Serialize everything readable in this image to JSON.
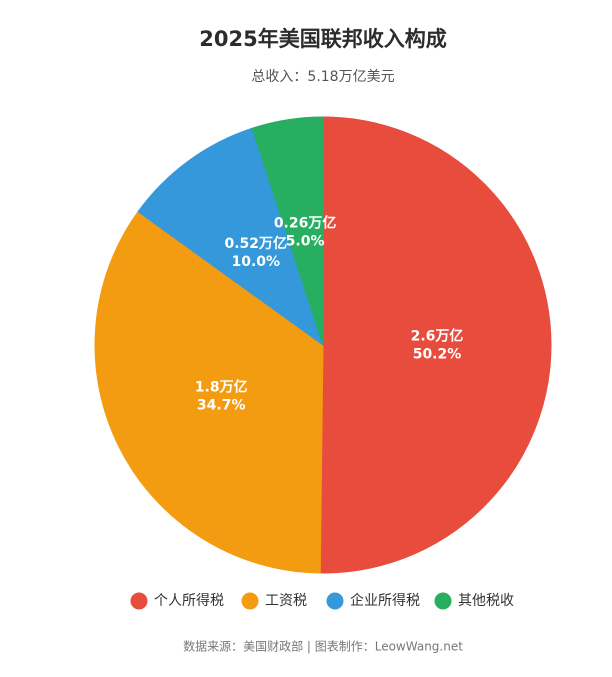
{
  "chart_data": {
    "type": "pie",
    "title": "2025年美国联邦收入构成",
    "subtitle": "总收入：5.18万亿美元",
    "categories": [
      "个人所得税",
      "工资税",
      "企业所得税",
      "其他税收"
    ],
    "values": [
      2.6,
      1.8,
      0.52,
      0.26
    ],
    "value_labels": [
      "2.6万亿",
      "1.8万亿",
      "0.52万亿",
      "0.26万亿"
    ],
    "percent_labels": [
      "50.2%",
      "34.7%",
      "10.0%",
      "5.0%"
    ],
    "colors": [
      "#e74c3c",
      "#f39c12",
      "#3498db",
      "#27ae60"
    ],
    "legend": "bottom",
    "source": "数据来源：美国财政部 | 图表制作：LeowWang.net"
  }
}
